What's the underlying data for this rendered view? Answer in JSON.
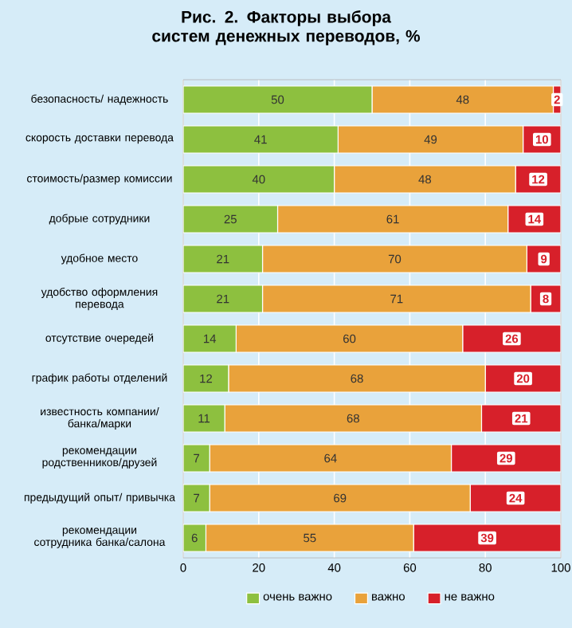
{
  "chart_data": {
    "type": "bar",
    "orientation": "horizontal",
    "stacked": true,
    "title": "Рис. 2. Факторы выбора систем денежных переводов, %",
    "categories": [
      "безопасность/ надежность",
      "скорость доставки перевода",
      "стоимость/размер комиссии",
      "добрые сотрудники",
      "удобное место",
      "удобство оформления перевода",
      "отсутствие очередей",
      "график работы отделений",
      "известность компании/ банка/марки",
      "рекомендации родственников/друзей",
      "предыдущий опыт/ привычка",
      "рекомендации сотрудника банка/салона"
    ],
    "series": [
      {
        "name": "очень важно",
        "color": "#8dc03f",
        "values": [
          50,
          41,
          40,
          25,
          21,
          21,
          14,
          12,
          11,
          7,
          7,
          6
        ]
      },
      {
        "name": "важно",
        "color": "#e9a23b",
        "values": [
          48,
          49,
          48,
          61,
          70,
          71,
          60,
          68,
          68,
          64,
          69,
          55
        ]
      },
      {
        "name": "не важно",
        "color": "#d7202a",
        "values": [
          2,
          10,
          12,
          14,
          9,
          8,
          26,
          20,
          21,
          29,
          24,
          39
        ]
      }
    ],
    "xlim": [
      0,
      100
    ],
    "xticks": [
      0,
      20,
      40,
      60,
      80,
      100
    ],
    "grid": "x",
    "legend": "bottom",
    "data_labels": true
  }
}
